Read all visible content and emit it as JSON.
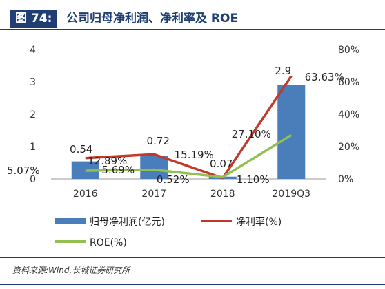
{
  "figure": {
    "label": "图 74:",
    "title": "公司归母净利润、净利率及 ROE",
    "source": "资料来源:Wind,长城证券研究所"
  },
  "chart_data": {
    "type": "bar",
    "categories": [
      "2016",
      "2017",
      "2018",
      "2019Q3"
    ],
    "series": [
      {
        "name": "归母净利润(亿元)",
        "type": "bar",
        "axis": "left",
        "color": "#4a7ebb",
        "values": [
          0.54,
          0.72,
          0.07,
          2.9
        ],
        "labels": [
          "0.54",
          "0.72",
          "0.07",
          "2.9"
        ]
      },
      {
        "name": "净利率(%)",
        "type": "line",
        "axis": "right",
        "color": "#c0392b",
        "values": [
          12.89,
          15.19,
          0.52,
          63.63
        ],
        "labels": [
          "12.89%",
          "15.19%",
          "0.52%",
          "63.63%"
        ]
      },
      {
        "name": "ROE(%)",
        "type": "line",
        "axis": "right",
        "color": "#92c050",
        "values": [
          5.07,
          5.69,
          1.1,
          27.1
        ],
        "labels": [
          "5.07%",
          "5.69%",
          "1.10%",
          "27.10%"
        ]
      }
    ],
    "y_left": {
      "ylim": [
        0,
        4
      ],
      "ticks": [
        "0",
        "1",
        "2",
        "3",
        "4"
      ]
    },
    "y_right": {
      "ylim": [
        0,
        80
      ],
      "ticks": [
        "0%",
        "20%",
        "40%",
        "60%",
        "80%"
      ]
    },
    "legend": "bottom",
    "grid": false
  }
}
